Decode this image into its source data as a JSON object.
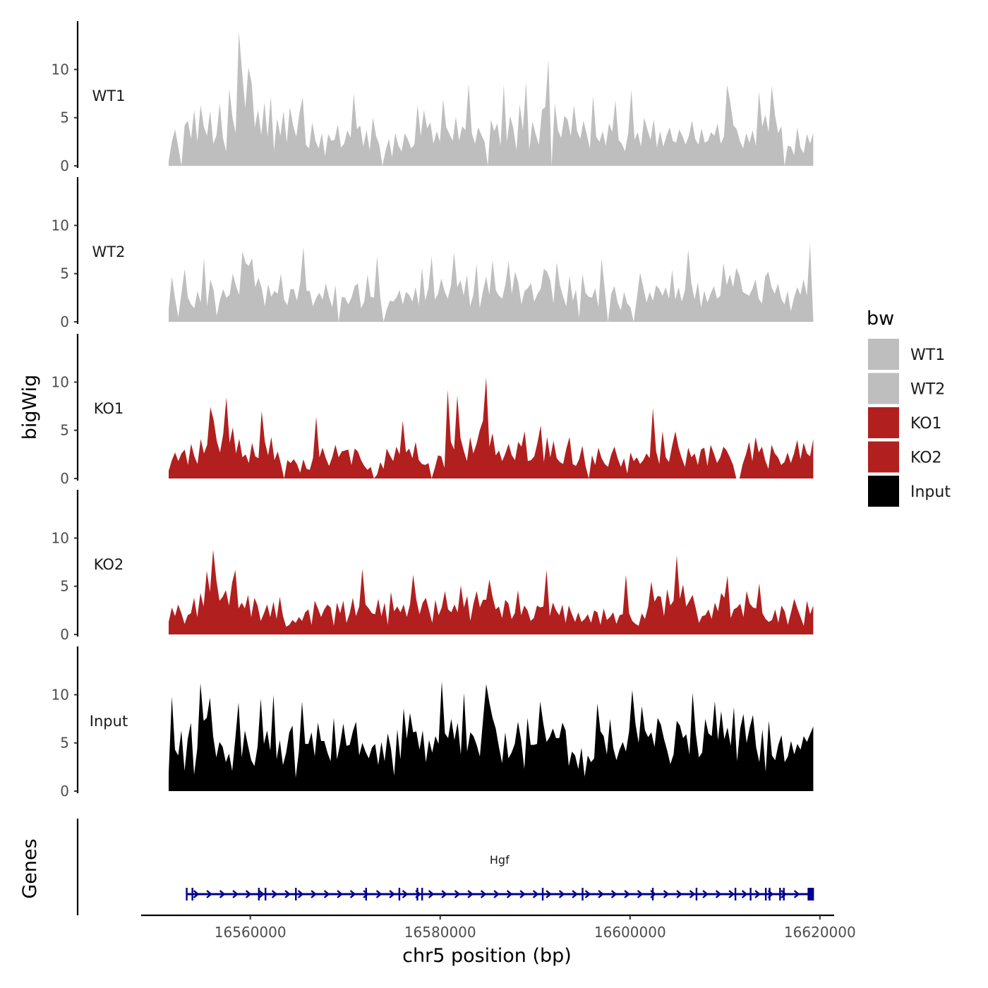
{
  "chart_data": {
    "type": "area",
    "y_axis_title": "bigWig",
    "genes_axis_title": "Genes",
    "x_axis_title": "chr5 position (bp)",
    "x_range": [
      16548500,
      16621500
    ],
    "x_ticks": [
      16560000,
      16580000,
      16600000,
      16620000
    ],
    "x_tick_labels": [
      "16560000",
      "16580000",
      "16600000",
      "16620000"
    ],
    "y_range": [
      0,
      14.5
    ],
    "y_ticks": [
      0,
      5,
      10
    ],
    "y_tick_labels": [
      "0",
      "5",
      "10"
    ],
    "tracks": [
      {
        "name": "WT1",
        "color": "#bebebe",
        "x_start": 16551400,
        "x_end": 16619300,
        "values": [
          0.5,
          2.5,
          3.8,
          2.0,
          0.0,
          4.2,
          4.7,
          2.8,
          5.8,
          2.5,
          6.3,
          4.1,
          3.1,
          5.7,
          2.3,
          3.2,
          6.5,
          2.9,
          1.5,
          8.0,
          5.0,
          3.4,
          13.9,
          9.8,
          6.0,
          10.2,
          8.6,
          4.0,
          5.8,
          3.2,
          6.6,
          3.0,
          7.2,
          1.6,
          4.9,
          3.1,
          5.7,
          2.4,
          6.1,
          4.2,
          3.0,
          5.5,
          7.1,
          2.2,
          1.8,
          4.5,
          2.6,
          1.8,
          3.4,
          1.0,
          3.3,
          2.6,
          2.7,
          4.3,
          1.9,
          2.3,
          3.7,
          2.9,
          7.5,
          3.8,
          4.2,
          2.0,
          3.7,
          1.6,
          5.0,
          3.1,
          2.2,
          0.0,
          1.6,
          2.8,
          0.9,
          3.4,
          2.1,
          1.5,
          3.4,
          2.7,
          1.8,
          2.2,
          6.3,
          3.1,
          5.8,
          3.9,
          4.5,
          2.3,
          3.6,
          2.5,
          6.9,
          4.0,
          3.3,
          2.6,
          5.1,
          2.6,
          4.1,
          3.7,
          8.5,
          3.4,
          2.3,
          4.0,
          3.2,
          2.5,
          0.0,
          4.8,
          3.6,
          4.4,
          2.1,
          8.4,
          2.5,
          5.2,
          3.9,
          1.6,
          6.4,
          3.7,
          8.7,
          1.6,
          4.6,
          3.3,
          2.2,
          5.8,
          6.1,
          11.0,
          0.0,
          6.5,
          3.7,
          2.9,
          5.2,
          4.8,
          3.1,
          6.3,
          3.6,
          2.8,
          4.7,
          3.3,
          1.8,
          7.3,
          3.0,
          2.5,
          3.6,
          2.1,
          4.4,
          3.5,
          6.8,
          2.7,
          2.3,
          1.5,
          3.4,
          7.9,
          2.7,
          3.5,
          2.0,
          5.0,
          3.8,
          2.7,
          4.8,
          1.9,
          3.6,
          2.0,
          3.1,
          4.0,
          2.6,
          2.4,
          3.8,
          3.1,
          2.2,
          3.1,
          4.7,
          2.8,
          2.2,
          3.9,
          2.4,
          2.6,
          3.5,
          3.1,
          4.4,
          2.3,
          3.0,
          8.4,
          6.6,
          4.2,
          3.8,
          2.6,
          1.8,
          3.4,
          2.4,
          3.7,
          2.1,
          7.7,
          4.1,
          5.3,
          3.5,
          8.3,
          5.3,
          3.4,
          4.1,
          0.0,
          2.1,
          2.0,
          1.1,
          4.0,
          1.9,
          1.3,
          3.3,
          2.3,
          3.4
        ]
      },
      {
        "name": "WT2",
        "color": "#bebebe",
        "x_start": 16551400,
        "x_end": 16619300,
        "values": [
          1.3,
          4.7,
          2.4,
          0.5,
          3.0,
          5.5,
          2.5,
          1.8,
          1.4,
          3.2,
          2.0,
          6.6,
          1.6,
          4.4,
          3.3,
          0.6,
          2.3,
          3.4,
          2.5,
          2.8,
          5.0,
          3.7,
          2.8,
          7.3,
          6.1,
          5.8,
          6.6,
          3.6,
          4.6,
          3.5,
          1.6,
          3.9,
          2.6,
          3.2,
          2.9,
          5.0,
          2.3,
          1.7,
          3.4,
          3.4,
          2.2,
          4.0,
          7.8,
          3.2,
          3.2,
          1.6,
          2.5,
          3.0,
          2.3,
          4.0,
          2.6,
          1.5,
          3.8,
          0.0,
          2.6,
          2.5,
          1.8,
          2.5,
          3.7,
          4.0,
          1.4,
          2.1,
          4.9,
          2.6,
          2.5,
          6.8,
          2.5,
          0.0,
          1.3,
          2.2,
          2.1,
          2.5,
          3.3,
          1.8,
          3.1,
          2.8,
          2.1,
          3.6,
          1.7,
          5.6,
          2.2,
          3.5,
          6.8,
          2.3,
          2.9,
          4.5,
          3.2,
          2.4,
          3.7,
          7.2,
          3.6,
          4.3,
          2.7,
          4.9,
          1.6,
          2.8,
          6.0,
          1.4,
          3.2,
          4.7,
          2.8,
          6.4,
          3.3,
          2.7,
          2.4,
          3.9,
          6.3,
          2.9,
          5.2,
          4.1,
          1.8,
          3.2,
          3.5,
          4.0,
          2.1,
          2.9,
          3.4,
          5.5,
          5.2,
          4.3,
          1.9,
          6.2,
          3.8,
          2.6,
          1.6,
          4.8,
          2.2,
          3.3,
          0.4,
          5.0,
          3.0,
          2.6,
          2.5,
          3.5,
          1.5,
          6.6,
          3.3,
          0.0,
          2.9,
          3.7,
          2.0,
          1.2,
          3.1,
          1.9,
          1.5,
          0.0,
          2.5,
          5.1,
          3.6,
          2.0,
          3.1,
          2.2,
          3.8,
          3.4,
          2.7,
          3.6,
          2.4,
          5.4,
          2.3,
          3.6,
          2.1,
          3.3,
          7.5,
          4.0,
          2.3,
          4.1,
          1.5,
          3.2,
          2.0,
          2.9,
          3.7,
          2.4,
          2.7,
          6.1,
          3.8,
          4.9,
          3.6,
          5.6,
          4.8,
          3.1,
          2.9,
          2.7,
          3.4,
          4.4,
          2.4,
          1.9,
          4.7,
          5.2,
          3.6,
          2.9,
          4.0,
          2.4,
          1.8,
          3.2,
          1.1,
          2.5,
          3.6,
          2.8,
          4.4,
          2.7,
          8.1,
          0.2
        ]
      },
      {
        "name": "KO1",
        "color": "#b21f1f",
        "x_start": 16551400,
        "x_end": 16619300,
        "values": [
          0.8,
          1.9,
          2.7,
          1.8,
          2.6,
          3.0,
          1.4,
          3.6,
          2.3,
          1.5,
          4.1,
          2.6,
          3.5,
          7.4,
          6.1,
          3.9,
          2.7,
          4.6,
          8.4,
          3.7,
          5.3,
          2.6,
          4.1,
          2.2,
          2.5,
          1.6,
          3.7,
          2.3,
          2.1,
          7.0,
          3.8,
          2.4,
          4.3,
          1.9,
          2.8,
          1.5,
          0.0,
          1.9,
          1.6,
          2.0,
          1.5,
          0.6,
          2.0,
          1.0,
          0.9,
          2.1,
          6.4,
          2.2,
          3.2,
          2.1,
          1.3,
          2.2,
          3.5,
          2.2,
          2.8,
          2.9,
          3.0,
          1.4,
          3.1,
          2.8,
          1.9,
          1.3,
          0.9,
          1.2,
          0.0,
          0.4,
          1.7,
          1.0,
          3.1,
          2.4,
          1.8,
          3.3,
          2.5,
          6.0,
          2.7,
          3.1,
          2.1,
          3.8,
          1.9,
          1.5,
          1.4,
          1.6,
          0.0,
          1.1,
          2.4,
          2.3,
          1.1,
          9.2,
          3.8,
          3.0,
          8.6,
          4.2,
          2.9,
          1.8,
          4.3,
          2.6,
          3.6,
          5.0,
          6.0,
          10.5,
          3.3,
          4.7,
          2.4,
          2.9,
          1.8,
          2.6,
          3.6,
          2.4,
          1.9,
          3.8,
          3.3,
          4.9,
          1.8,
          1.9,
          2.3,
          3.7,
          5.5,
          1.7,
          4.3,
          2.2,
          3.9,
          2.1,
          1.7,
          1.5,
          3.1,
          4.3,
          1.5,
          1.3,
          2.0,
          3.4,
          1.3,
          0.0,
          2.4,
          1.4,
          3.2,
          2.1,
          1.5,
          1.2,
          2.5,
          3.3,
          2.1,
          1.2,
          2.1,
          0.5,
          2.7,
          1.8,
          2.2,
          1.5,
          1.9,
          2.6,
          2.1,
          7.3,
          2.8,
          1.5,
          4.9,
          2.2,
          1.7,
          3.4,
          4.9,
          3.2,
          2.1,
          1.2,
          3.2,
          2.2,
          2.6,
          1.4,
          3.0,
          3.2,
          1.3,
          3.5,
          2.6,
          1.6,
          2.2,
          3.3,
          2.9,
          2.2,
          1.4,
          0.0,
          0.0,
          1.5,
          2.5,
          3.8,
          1.8,
          4.3,
          2.7,
          3.3,
          1.9,
          1.0,
          3.5,
          2.6,
          2.2,
          1.4,
          1.7,
          2.7,
          1.6,
          2.6,
          4.0,
          2.0,
          3.7,
          2.6,
          2.3,
          4.1
        ]
      },
      {
        "name": "KO2",
        "color": "#b21f1f",
        "x_start": 16551400,
        "x_end": 16619300,
        "values": [
          1.3,
          2.8,
          1.9,
          3.1,
          2.2,
          1.1,
          2.0,
          2.2,
          3.8,
          1.8,
          4.3,
          2.9,
          6.6,
          4.4,
          8.8,
          5.7,
          3.5,
          3.9,
          4.6,
          3.0,
          5.4,
          6.7,
          2.7,
          3.3,
          2.7,
          4.1,
          1.8,
          3.8,
          3.0,
          1.4,
          2.2,
          3.1,
          1.8,
          3.4,
          1.6,
          3.9,
          1.9,
          0.8,
          1.0,
          1.5,
          1.2,
          1.8,
          1.4,
          2.3,
          2.6,
          1.0,
          3.5,
          2.7,
          1.8,
          2.6,
          3.1,
          2.8,
          0.9,
          3.3,
          2.2,
          3.5,
          1.2,
          2.2,
          3.8,
          1.9,
          2.9,
          6.8,
          3.1,
          2.7,
          2.2,
          2.1,
          3.7,
          1.9,
          3.3,
          1.0,
          4.4,
          2.4,
          2.9,
          2.3,
          3.1,
          1.8,
          3.1,
          6.2,
          3.6,
          2.1,
          3.3,
          3.8,
          2.5,
          1.2,
          3.6,
          2.0,
          2.8,
          4.5,
          2.6,
          2.3,
          3.1,
          2.3,
          5.1,
          2.8,
          4.0,
          1.4,
          3.2,
          4.5,
          2.8,
          3.6,
          3.6,
          5.7,
          3.9,
          2.6,
          2.9,
          1.7,
          3.6,
          3.2,
          1.6,
          2.2,
          4.6,
          2.0,
          3.0,
          2.5,
          1.4,
          1.7,
          3.0,
          2.8,
          2.9,
          6.7,
          1.9,
          3.3,
          2.5,
          2.0,
          3.1,
          1.2,
          3.0,
          2.1,
          1.3,
          2.3,
          1.3,
          1.6,
          2.1,
          1.2,
          2.5,
          2.3,
          1.0,
          2.7,
          1.5,
          1.8,
          2.3,
          1.1,
          2.0,
          2.1,
          6.2,
          2.2,
          1.4,
          1.1,
          0.9,
          2.2,
          1.6,
          2.9,
          5.5,
          3.4,
          4.0,
          3.9,
          1.9,
          4.7,
          3.0,
          3.5,
          8.2,
          3.7,
          5.2,
          2.9,
          3.5,
          4.1,
          2.7,
          1.2,
          1.9,
          2.0,
          2.6,
          1.6,
          3.3,
          2.4,
          4.3,
          3.8,
          6.1,
          1.7,
          2.6,
          2.8,
          3.2,
          1.8,
          4.5,
          3.2,
          2.8,
          2.7,
          5.3,
          2.2,
          1.6,
          1.3,
          1.5,
          2.6,
          1.2,
          3.0,
          2.4,
          1.0,
          2.3,
          3.7,
          2.7,
          1.8,
          0.9,
          3.5,
          2.1,
          3.0
        ]
      },
      {
        "name": "Input",
        "color": "#000000",
        "x_start": 16551400,
        "x_end": 16619300,
        "values": [
          1.9,
          9.8,
          4.3,
          3.7,
          6.3,
          2.1,
          5.4,
          7.1,
          1.7,
          4.4,
          11.2,
          7.3,
          7.6,
          9.7,
          5.7,
          3.5,
          5.1,
          4.6,
          3.0,
          3.9,
          2.1,
          5.5,
          9.2,
          3.5,
          6.3,
          4.7,
          3.2,
          2.6,
          4.6,
          9.6,
          4.9,
          6.3,
          4.2,
          10.0,
          3.3,
          5.3,
          2.7,
          4.0,
          6.1,
          6.8,
          1.4,
          4.1,
          9.3,
          4.9,
          4.9,
          6.1,
          3.6,
          7.1,
          5.2,
          5.2,
          4.0,
          3.1,
          7.6,
          3.3,
          4.9,
          7.0,
          4.7,
          4.8,
          6.2,
          7.2,
          3.7,
          5.0,
          4.1,
          3.4,
          4.5,
          4.9,
          2.7,
          5.1,
          3.1,
          6.0,
          4.4,
          1.6,
          6.4,
          3.3,
          8.6,
          5.4,
          8.1,
          6.1,
          6.2,
          4.3,
          6.3,
          3.0,
          5.3,
          4.0,
          5.7,
          4.9,
          11.4,
          6.0,
          5.5,
          7.5,
          5.3,
          7.1,
          3.8,
          10.2,
          4.1,
          6.1,
          5.7,
          4.8,
          3.6,
          7.4,
          11.1,
          9.2,
          7.6,
          6.5,
          4.6,
          2.9,
          6.1,
          3.4,
          4.0,
          4.9,
          7.2,
          5.3,
          2.3,
          7.6,
          4.8,
          4.8,
          4.9,
          9.3,
          7.0,
          5.1,
          5.6,
          6.5,
          5.5,
          5.5,
          7.1,
          6.3,
          2.6,
          4.1,
          3.7,
          2.3,
          4.5,
          1.5,
          3.7,
          3.0,
          3.4,
          9.1,
          6.2,
          5.7,
          3.8,
          7.5,
          4.5,
          3.2,
          4.3,
          5.1,
          4.1,
          6.2,
          10.5,
          7.0,
          5.0,
          8.8,
          6.3,
          5.6,
          6.1,
          4.6,
          7.6,
          6.9,
          5.4,
          4.2,
          2.8,
          3.8,
          7.3,
          6.8,
          5.5,
          5.9,
          3.8,
          10.2,
          6.0,
          3.5,
          4.0,
          7.5,
          6.0,
          5.7,
          9.3,
          5.3,
          8.3,
          5.4,
          6.6,
          4.7,
          8.7,
          3.1,
          6.5,
          8.0,
          5.0,
          6.6,
          7.9,
          4.6,
          3.0,
          6.4,
          2.0,
          7.3,
          3.7,
          3.2,
          4.8,
          5.8,
          3.0,
          3.6,
          5.2,
          3.8,
          4.9,
          4.3,
          5.7,
          5.1,
          5.9,
          6.7
        ]
      }
    ],
    "gene": {
      "name": "Hgf",
      "color": "#00008b",
      "start": 16553300,
      "end": 16619200,
      "strand": "+",
      "exons": [
        16553300,
        16553900,
        16560900,
        16561600,
        16564800,
        16572200,
        16575700,
        16577600,
        16578100,
        16590800,
        16595000,
        16602400,
        16607000,
        16611100,
        16612700,
        16614300,
        16614700,
        16615800,
        16616200,
        16619000
      ]
    },
    "legend": {
      "title": "bw",
      "position": "right",
      "entries": [
        {
          "label": "WT1",
          "color": "#bebebe"
        },
        {
          "label": "WT2",
          "color": "#bebebe"
        },
        {
          "label": "KO1",
          "color": "#b21f1f"
        },
        {
          "label": "KO2",
          "color": "#b21f1f"
        },
        {
          "label": "Input",
          "color": "#000000"
        }
      ]
    }
  }
}
